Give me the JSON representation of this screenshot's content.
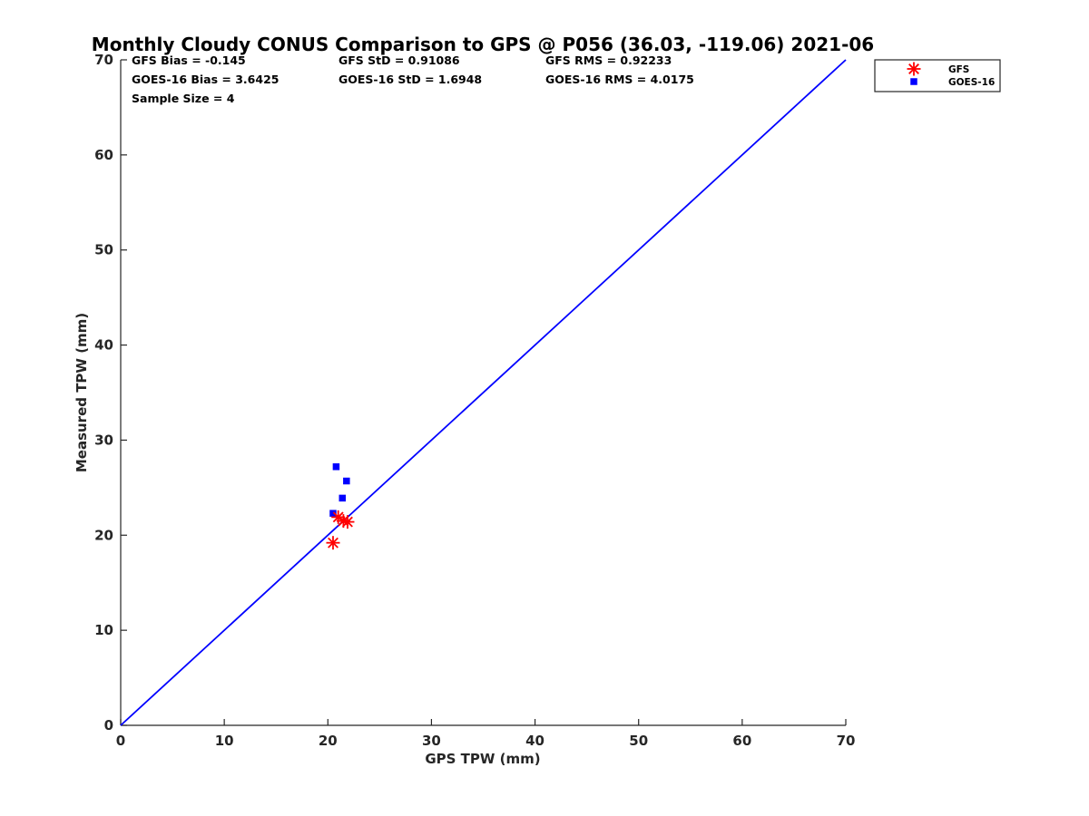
{
  "chart_data": {
    "type": "scatter",
    "title": "Monthly Cloudy CONUS Comparison to GPS @ P056 (36.03, -119.06) 2021-06",
    "xlabel": "GPS TPW (mm)",
    "ylabel": "Measured TPW (mm)",
    "xlim": [
      0,
      70
    ],
    "ylim": [
      0,
      70
    ],
    "xticks": [
      0,
      10,
      20,
      30,
      40,
      50,
      60,
      70
    ],
    "yticks": [
      0,
      10,
      20,
      30,
      40,
      50,
      60,
      70
    ],
    "grid": false,
    "legend_position": "outside-top-right",
    "reference_line": {
      "x": [
        0,
        70
      ],
      "y": [
        0,
        70
      ],
      "color": "#0000ff"
    },
    "series": [
      {
        "name": "GFS",
        "marker": "asterisk",
        "color": "#ff0000",
        "points": [
          {
            "x": 20.5,
            "y": 19.2
          },
          {
            "x": 21.0,
            "y": 21.9
          },
          {
            "x": 21.5,
            "y": 21.5
          },
          {
            "x": 21.9,
            "y": 21.4
          }
        ]
      },
      {
        "name": "GOES-16",
        "marker": "square",
        "color": "#0000ff",
        "points": [
          {
            "x": 20.5,
            "y": 22.3
          },
          {
            "x": 20.8,
            "y": 27.2
          },
          {
            "x": 21.4,
            "y": 23.9
          },
          {
            "x": 21.8,
            "y": 25.7
          }
        ]
      }
    ],
    "annotations": {
      "gfs_bias": "GFS Bias = -0.145",
      "goes_bias": "GOES-16 Bias = 3.6425",
      "sample_size": "Sample Size = 4",
      "gfs_std": "GFS StD = 0.91086",
      "goes_std": "GOES-16 StD = 1.6948",
      "gfs_rms": "GFS RMS = 0.92233",
      "goes_rms": "GOES-16 RMS = 4.0175"
    },
    "legend": {
      "entries": [
        {
          "label": "GFS",
          "marker": "asterisk",
          "color": "#ff0000"
        },
        {
          "label": "GOES-16",
          "marker": "square",
          "color": "#0000ff"
        }
      ]
    }
  }
}
